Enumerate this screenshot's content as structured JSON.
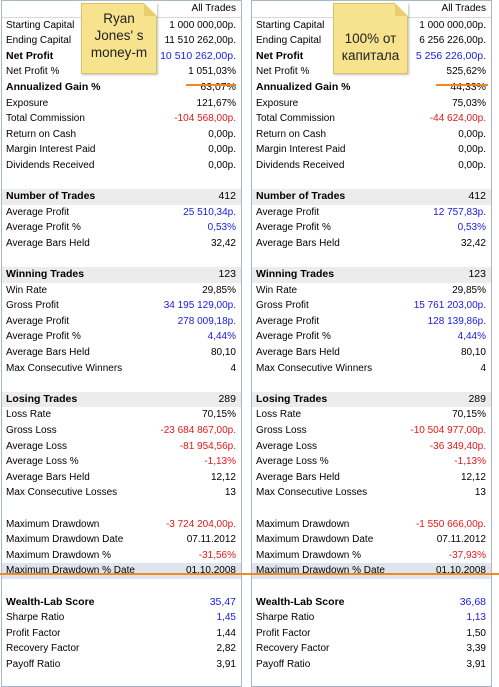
{
  "panels": [
    {
      "header": "All Trades",
      "note": [
        "Ryan",
        "Jones' s",
        "money-m"
      ],
      "rows": [
        {
          "label": "Starting Capital",
          "value": "1 000 000,00р.",
          "style": "",
          "color": "c-black"
        },
        {
          "label": "Ending Capital",
          "value": "11 510 262,00р.",
          "style": "",
          "color": "c-black"
        },
        {
          "label": "Net Profit",
          "value": "10 510 262,00р.",
          "style": "bold",
          "color": "c-blue"
        },
        {
          "label": "Net Profit %",
          "value": "1 051,03%",
          "style": "",
          "color": "c-black"
        },
        {
          "label": "Annualized Gain %",
          "value": "63,07%",
          "style": "bold",
          "color": "c-black"
        },
        {
          "label": "Exposure",
          "value": "121,67%",
          "style": "",
          "color": "c-black"
        },
        {
          "label": "Total Commission",
          "value": "-104 568,00р.",
          "style": "",
          "color": "c-red"
        },
        {
          "label": "Return on Cash",
          "value": "0,00р.",
          "style": "",
          "color": "c-black"
        },
        {
          "label": "Margin Interest Paid",
          "value": "0,00р.",
          "style": "",
          "color": "c-black"
        },
        {
          "label": "Dividends Received",
          "value": "0,00р.",
          "style": "",
          "color": "c-black"
        },
        {
          "label": "",
          "value": "",
          "style": "blank",
          "color": "c-black"
        },
        {
          "label": "Number of Trades",
          "value": "412",
          "style": "section",
          "color": "c-black"
        },
        {
          "label": "Average Profit",
          "value": "25 510,34р.",
          "style": "",
          "color": "c-blue"
        },
        {
          "label": "Average Profit %",
          "value": "0,53%",
          "style": "",
          "color": "c-blue"
        },
        {
          "label": "Average Bars Held",
          "value": "32,42",
          "style": "",
          "color": "c-black"
        },
        {
          "label": "",
          "value": "",
          "style": "blank",
          "color": "c-black"
        },
        {
          "label": "Winning Trades",
          "value": "123",
          "style": "section",
          "color": "c-black"
        },
        {
          "label": "Win Rate",
          "value": "29,85%",
          "style": "",
          "color": "c-black"
        },
        {
          "label": "Gross Profit",
          "value": "34 195 129,00р.",
          "style": "",
          "color": "c-blue"
        },
        {
          "label": "Average Profit",
          "value": "278 009,18р.",
          "style": "",
          "color": "c-blue"
        },
        {
          "label": "Average Profit %",
          "value": "4,44%",
          "style": "",
          "color": "c-blue"
        },
        {
          "label": "Average Bars Held",
          "value": "80,10",
          "style": "",
          "color": "c-black"
        },
        {
          "label": "Max Consecutive Winners",
          "value": "4",
          "style": "",
          "color": "c-black"
        },
        {
          "label": "",
          "value": "",
          "style": "blank",
          "color": "c-black"
        },
        {
          "label": "Losing Trades",
          "value": "289",
          "style": "section",
          "color": "c-black"
        },
        {
          "label": "Loss Rate",
          "value": "70,15%",
          "style": "",
          "color": "c-black"
        },
        {
          "label": "Gross Loss",
          "value": "-23 684 867,00р.",
          "style": "",
          "color": "c-red"
        },
        {
          "label": "Average Loss",
          "value": "-81 954,56р.",
          "style": "",
          "color": "c-red"
        },
        {
          "label": "Average Loss %",
          "value": "-1,13%",
          "style": "",
          "color": "c-red"
        },
        {
          "label": "Average Bars Held",
          "value": "12,12",
          "style": "",
          "color": "c-black"
        },
        {
          "label": "Max Consecutive Losses",
          "value": "13",
          "style": "",
          "color": "c-black"
        },
        {
          "label": "",
          "value": "",
          "style": "blank",
          "color": "c-black"
        },
        {
          "label": "Maximum Drawdown",
          "value": "-3 724 204,00р.",
          "style": "",
          "color": "c-red"
        },
        {
          "label": "Maximum Drawdown Date",
          "value": "07.11.2012",
          "style": "",
          "color": "c-black"
        },
        {
          "label": "Maximum Drawdown %",
          "value": "-31,56%",
          "style": "",
          "color": "c-red"
        },
        {
          "label": "Maximum Drawdown % Date",
          "value": "01.10.2008",
          "style": "tinted",
          "color": "c-black"
        },
        {
          "label": "",
          "value": "",
          "style": "blank",
          "color": "c-black"
        },
        {
          "label": "Wealth-Lab Score",
          "value": "35,47",
          "style": "bold",
          "color": "c-blue"
        },
        {
          "label": "Sharpe Ratio",
          "value": "1,45",
          "style": "",
          "color": "c-blue"
        },
        {
          "label": "Profit Factor",
          "value": "1,44",
          "style": "",
          "color": "c-black"
        },
        {
          "label": "Recovery Factor",
          "value": "2,82",
          "style": "",
          "color": "c-black"
        },
        {
          "label": "Payoff Ratio",
          "value": "3,91",
          "style": "",
          "color": "c-black"
        }
      ]
    },
    {
      "header": "All Trades",
      "note": [
        "100% от",
        "капитала"
      ],
      "rows": [
        {
          "label": "Starting Capital",
          "value": "1 000 000,00р.",
          "style": "",
          "color": "c-black"
        },
        {
          "label": "Ending Capital",
          "value": "6 256 226,00р.",
          "style": "",
          "color": "c-black"
        },
        {
          "label": "Net Profit",
          "value": "5 256 226,00р.",
          "style": "bold",
          "color": "c-blue"
        },
        {
          "label": "Net Profit %",
          "value": "525,62%",
          "style": "",
          "color": "c-black"
        },
        {
          "label": "Annualized Gain %",
          "value": "44,33%",
          "style": "bold",
          "color": "c-black"
        },
        {
          "label": "Exposure",
          "value": "75,03%",
          "style": "",
          "color": "c-black"
        },
        {
          "label": "Total Commission",
          "value": "-44 624,00р.",
          "style": "",
          "color": "c-red"
        },
        {
          "label": "Return on Cash",
          "value": "0,00р.",
          "style": "",
          "color": "c-black"
        },
        {
          "label": "Margin Interest Paid",
          "value": "0,00р.",
          "style": "",
          "color": "c-black"
        },
        {
          "label": "Dividends Received",
          "value": "0,00р.",
          "style": "",
          "color": "c-black"
        },
        {
          "label": "",
          "value": "",
          "style": "blank",
          "color": "c-black"
        },
        {
          "label": "Number of Trades",
          "value": "412",
          "style": "section",
          "color": "c-black"
        },
        {
          "label": "Average Profit",
          "value": "12 757,83р.",
          "style": "",
          "color": "c-blue"
        },
        {
          "label": "Average Profit %",
          "value": "0,53%",
          "style": "",
          "color": "c-blue"
        },
        {
          "label": "Average Bars Held",
          "value": "32,42",
          "style": "",
          "color": "c-black"
        },
        {
          "label": "",
          "value": "",
          "style": "blank",
          "color": "c-black"
        },
        {
          "label": "Winning Trades",
          "value": "123",
          "style": "section",
          "color": "c-black"
        },
        {
          "label": "Win Rate",
          "value": "29,85%",
          "style": "",
          "color": "c-black"
        },
        {
          "label": "Gross Profit",
          "value": "15 761 203,00р.",
          "style": "",
          "color": "c-blue"
        },
        {
          "label": "Average Profit",
          "value": "128 139,86р.",
          "style": "",
          "color": "c-blue"
        },
        {
          "label": "Average Profit %",
          "value": "4,44%",
          "style": "",
          "color": "c-blue"
        },
        {
          "label": "Average Bars Held",
          "value": "80,10",
          "style": "",
          "color": "c-black"
        },
        {
          "label": "Max Consecutive Winners",
          "value": "4",
          "style": "",
          "color": "c-black"
        },
        {
          "label": "",
          "value": "",
          "style": "blank",
          "color": "c-black"
        },
        {
          "label": "Losing Trades",
          "value": "289",
          "style": "section",
          "color": "c-black"
        },
        {
          "label": "Loss Rate",
          "value": "70,15%",
          "style": "",
          "color": "c-black"
        },
        {
          "label": "Gross Loss",
          "value": "-10 504 977,00р.",
          "style": "",
          "color": "c-red"
        },
        {
          "label": "Average Loss",
          "value": "-36 349,40р.",
          "style": "",
          "color": "c-red"
        },
        {
          "label": "Average Loss %",
          "value": "-1,13%",
          "style": "",
          "color": "c-red"
        },
        {
          "label": "Average Bars Held",
          "value": "12,12",
          "style": "",
          "color": "c-black"
        },
        {
          "label": "Max Consecutive Losses",
          "value": "13",
          "style": "",
          "color": "c-black"
        },
        {
          "label": "",
          "value": "",
          "style": "blank",
          "color": "c-black"
        },
        {
          "label": "Maximum Drawdown",
          "value": "-1 550 666,00р.",
          "style": "",
          "color": "c-red"
        },
        {
          "label": "Maximum Drawdown Date",
          "value": "07.11.2012",
          "style": "",
          "color": "c-black"
        },
        {
          "label": "Maximum Drawdown %",
          "value": "-37,93%",
          "style": "",
          "color": "c-red"
        },
        {
          "label": "Maximum Drawdown % Date",
          "value": "01.10.2008",
          "style": "tinted",
          "color": "c-black"
        },
        {
          "label": "",
          "value": "",
          "style": "blank",
          "color": "c-black"
        },
        {
          "label": "Wealth-Lab Score",
          "value": "36,68",
          "style": "bold",
          "color": "c-blue"
        },
        {
          "label": "Sharpe Ratio",
          "value": "1,13",
          "style": "",
          "color": "c-blue"
        },
        {
          "label": "Profit Factor",
          "value": "1,50",
          "style": "",
          "color": "c-black"
        },
        {
          "label": "Recovery Factor",
          "value": "3,39",
          "style": "",
          "color": "c-black"
        },
        {
          "label": "Payoff Ratio",
          "value": "3,91",
          "style": "",
          "color": "c-black"
        }
      ]
    }
  ]
}
